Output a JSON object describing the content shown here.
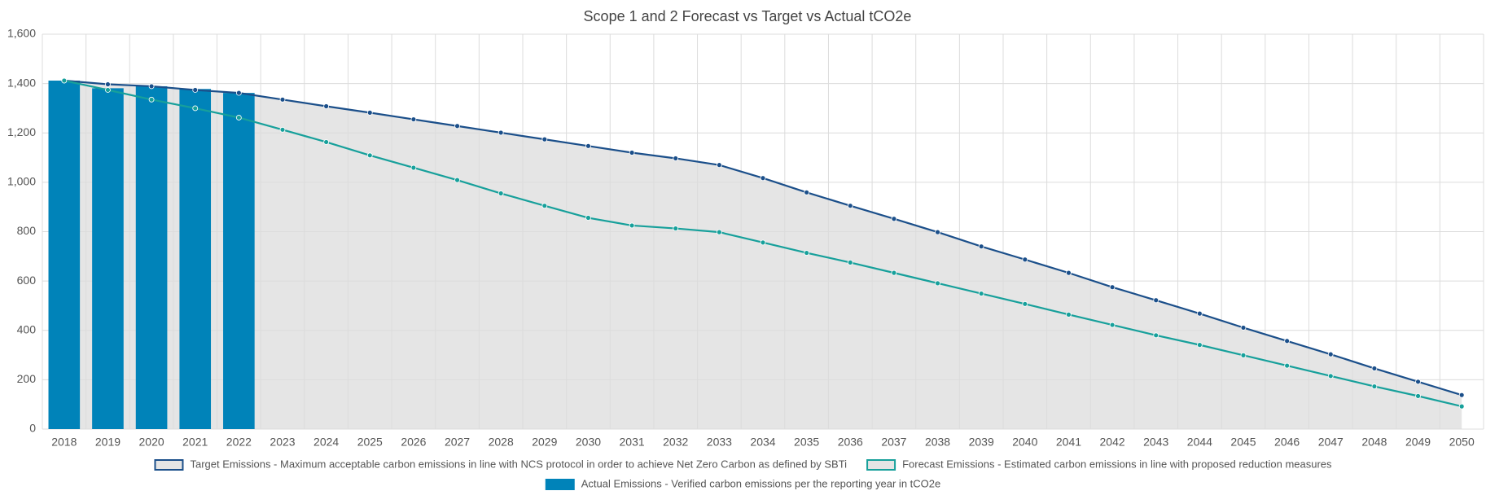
{
  "chart_data": {
    "type": "line",
    "title": "Scope 1 and 2 Forecast vs Target vs Actual tCO2e",
    "categories": [
      "2018",
      "2019",
      "2020",
      "2021",
      "2022",
      "2023",
      "2024",
      "2025",
      "2026",
      "2027",
      "2028",
      "2029",
      "2030",
      "2031",
      "2032",
      "2033",
      "2034",
      "2035",
      "2036",
      "2037",
      "2038",
      "2039",
      "2040",
      "2041",
      "2042",
      "2043",
      "2044",
      "2045",
      "2046",
      "2047",
      "2048",
      "2049",
      "2050"
    ],
    "ylim": [
      0,
      1600
    ],
    "yticks": [
      0,
      200,
      400,
      600,
      800,
      {
        "value": 1000,
        "label": "1,000"
      },
      {
        "value": 1200,
        "label": "1,200"
      },
      {
        "value": 1400,
        "label": "1,400"
      },
      {
        "value": 1600,
        "label": "1,600"
      }
    ],
    "grid": true,
    "legend_position": "bottom",
    "series": [
      {
        "name": "Target Emissions - Maximum acceptable carbon emissions in line with NCS protocol in order to achieve Net Zero Carbon as defined by SBTi",
        "type": "area-line",
        "color": "#1b4f8a",
        "area_color": "#e5e5e5",
        "values": [
          1412,
          1397,
          1389,
          1374,
          1362,
          1335,
          1308,
          1282,
          1255,
          1228,
          1201,
          1174,
          1147,
          1120,
          1097,
          1070,
          1017,
          959,
          905,
          852,
          798,
          740,
          687,
          633,
          575,
          522,
          468,
          411,
          357,
          303,
          246,
          192,
          138
        ]
      },
      {
        "name": "Forecast Emissions - Estimated carbon emissions in line with proposed reduction measures",
        "type": "line",
        "color": "#17a09b",
        "values": [
          1412,
          1374,
          1335,
          1300,
          1262,
          1213,
          1163,
          1109,
          1059,
          1009,
          955,
          905,
          856,
          825,
          813,
          798,
          756,
          714,
          675,
          633,
          591,
          549,
          507,
          464,
          422,
          380,
          341,
          299,
          257,
          215,
          173,
          134,
          92
        ]
      },
      {
        "name": "Actual Emissions - Verified carbon emissions per the reporting year in tCO2e",
        "type": "bar",
        "color": "#0083b9",
        "values": [
          1412,
          1381,
          1389,
          1378,
          1362,
          null,
          null,
          null,
          null,
          null,
          null,
          null,
          null,
          null,
          null,
          null,
          null,
          null,
          null,
          null,
          null,
          null,
          null,
          null,
          null,
          null,
          null,
          null,
          null,
          null,
          null,
          null,
          null
        ]
      }
    ]
  }
}
